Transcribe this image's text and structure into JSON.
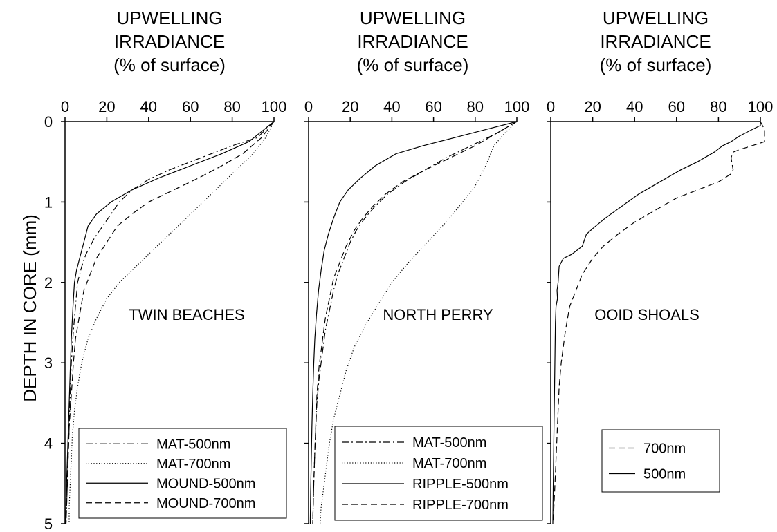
{
  "ylabel": "DEPTH IN CORE (mm)",
  "y_ticks": [
    "0",
    "1",
    "2",
    "3",
    "4",
    "5"
  ],
  "x_ticks": [
    "0",
    "20",
    "40",
    "60",
    "80",
    "100"
  ],
  "chart_data": [
    {
      "type": "line",
      "title": [
        "UPWELLING",
        "IRRADIANCE",
        "(% of surface)"
      ],
      "site_label": "TWIN BEACHES",
      "xlim": [
        0,
        100
      ],
      "ylim": [
        0,
        5
      ],
      "x_axis_position": "top",
      "y_inverted": true,
      "legend_placement": "bottom-right",
      "series": [
        {
          "name": "MAT-500nm",
          "style": "dashdot",
          "x": [
            100,
            92,
            80,
            65,
            50,
            40,
            32,
            26,
            22,
            18,
            14,
            10,
            8,
            6,
            5,
            4,
            3,
            2.5,
            2,
            1.5,
            1,
            0.5
          ],
          "y": [
            0,
            0.2,
            0.3,
            0.45,
            0.6,
            0.72,
            0.85,
            1.0,
            1.15,
            1.3,
            1.45,
            1.65,
            1.8,
            2.0,
            2.3,
            2.6,
            3.0,
            3.4,
            3.8,
            4.2,
            4.6,
            5.0
          ]
        },
        {
          "name": "MAT-700nm",
          "style": "dotted",
          "x": [
            100,
            96,
            90,
            82,
            74,
            66,
            58,
            50,
            42,
            34,
            26,
            20,
            15,
            11,
            8,
            6,
            4.5,
            3.5,
            3,
            2.5,
            2,
            2
          ],
          "y": [
            0,
            0.2,
            0.4,
            0.6,
            0.8,
            1.0,
            1.2,
            1.4,
            1.6,
            1.8,
            2.0,
            2.2,
            2.45,
            2.7,
            3.0,
            3.3,
            3.6,
            3.9,
            4.2,
            4.5,
            4.8,
            5.0
          ]
        },
        {
          "name": "MOUND-500nm",
          "style": "solid",
          "x": [
            100,
            88,
            75,
            60,
            45,
            32,
            22,
            15,
            11,
            9,
            7,
            5.5,
            4.5,
            3.8,
            3,
            2.5,
            2,
            1.5,
            1,
            0.5,
            0.3
          ],
          "y": [
            0,
            0.25,
            0.4,
            0.55,
            0.7,
            0.85,
            1.0,
            1.15,
            1.3,
            1.5,
            1.7,
            1.85,
            2.0,
            2.3,
            2.7,
            3.1,
            3.5,
            3.9,
            4.3,
            4.7,
            5.0
          ]
        },
        {
          "name": "MOUND-700nm",
          "style": "dashed",
          "x": [
            100,
            94,
            85,
            75,
            64,
            52,
            40,
            32,
            25,
            20,
            15,
            12,
            9,
            7,
            5,
            4,
            3,
            2,
            1.5,
            1,
            0.5
          ],
          "y": [
            0,
            0.2,
            0.4,
            0.55,
            0.7,
            0.85,
            1.0,
            1.15,
            1.3,
            1.5,
            1.7,
            1.9,
            2.1,
            2.4,
            2.7,
            3.0,
            3.4,
            3.8,
            4.2,
            4.6,
            5.0
          ]
        }
      ]
    },
    {
      "type": "line",
      "title": [
        "UPWELLING",
        "IRRADIANCE",
        "(% of surface)"
      ],
      "site_label": "NORTH PERRY",
      "xlim": [
        0,
        100
      ],
      "ylim": [
        0,
        5
      ],
      "x_axis_position": "top",
      "y_inverted": true,
      "legend_placement": "bottom",
      "series": [
        {
          "name": "MAT-500nm",
          "style": "dashdot",
          "x": [
            100,
            90,
            78,
            66,
            56,
            46,
            38,
            32,
            27,
            23,
            20,
            17,
            14,
            12,
            10,
            8,
            6.5,
            5,
            4,
            3.5,
            3,
            2.5,
            2
          ],
          "y": [
            0,
            0.15,
            0.3,
            0.45,
            0.6,
            0.75,
            0.9,
            1.05,
            1.2,
            1.35,
            1.5,
            1.7,
            1.9,
            2.1,
            2.35,
            2.6,
            2.9,
            3.2,
            3.5,
            3.8,
            4.1,
            4.5,
            5.0
          ]
        },
        {
          "name": "MAT-700nm",
          "style": "dotted",
          "x": [
            100,
            94,
            89,
            85,
            80,
            74,
            66,
            57,
            48,
            40,
            34,
            28,
            22,
            18,
            15,
            12,
            10,
            9,
            8,
            7,
            6,
            5.5
          ],
          "y": [
            0,
            0.15,
            0.3,
            0.55,
            0.8,
            1.0,
            1.25,
            1.5,
            1.75,
            2.0,
            2.25,
            2.5,
            2.8,
            3.1,
            3.4,
            3.7,
            4.0,
            4.2,
            4.4,
            4.6,
            4.8,
            5.0
          ]
        },
        {
          "name": "RIPPLE-500nm",
          "style": "solid",
          "x": [
            100,
            85,
            70,
            55,
            42,
            32,
            25,
            19,
            15,
            12,
            9.5,
            7.5,
            6,
            4.8,
            3.8,
            3,
            2.5,
            2,
            1.6,
            1.3,
            1,
            0.8
          ],
          "y": [
            0,
            0.1,
            0.2,
            0.3,
            0.4,
            0.55,
            0.7,
            0.85,
            1.0,
            1.2,
            1.4,
            1.6,
            1.85,
            2.1,
            2.4,
            2.7,
            3.0,
            3.4,
            3.8,
            4.2,
            4.6,
            5.0
          ]
        },
        {
          "name": "RIPPLE-700nm",
          "style": "dashed",
          "x": [
            100,
            90,
            80,
            68,
            56,
            45,
            37,
            31,
            26,
            22,
            18,
            15,
            12,
            10,
            8,
            6.5,
            5,
            4,
            3.5,
            3,
            2.5,
            2
          ],
          "y": [
            0,
            0.15,
            0.3,
            0.45,
            0.6,
            0.75,
            0.9,
            1.05,
            1.2,
            1.35,
            1.55,
            1.75,
            1.95,
            2.2,
            2.45,
            2.75,
            3.05,
            3.4,
            3.75,
            4.1,
            4.5,
            5.0
          ]
        }
      ]
    },
    {
      "type": "line",
      "title": [
        "UPWELLING",
        "IRRADIANCE",
        "(% of surface)"
      ],
      "site_label": "OOID SHOALS",
      "xlim": [
        0,
        100
      ],
      "ylim": [
        0,
        5
      ],
      "x_axis_position": "top",
      "y_inverted": true,
      "legend_placement": "bottom-right",
      "series": [
        {
          "name": "700nm",
          "style": "dashed",
          "x": [
            100,
            102,
            102,
            96,
            90,
            87,
            86,
            87,
            86,
            80,
            70,
            60,
            50,
            40,
            32,
            25,
            20,
            15,
            12,
            9,
            7,
            5,
            4,
            3.5,
            3,
            2.5,
            2,
            1.5,
            1
          ],
          "y": [
            0,
            0.1,
            0.25,
            0.3,
            0.35,
            0.38,
            0.45,
            0.6,
            0.65,
            0.75,
            0.85,
            0.95,
            1.1,
            1.25,
            1.4,
            1.55,
            1.7,
            1.9,
            2.1,
            2.3,
            2.6,
            3.0,
            3.3,
            3.6,
            3.9,
            4.2,
            4.5,
            4.8,
            5.0
          ]
        },
        {
          "name": "500nm",
          "style": "solid",
          "x": [
            100,
            100,
            96,
            90,
            86,
            82,
            78,
            74,
            70,
            62,
            52,
            42,
            34,
            26,
            20,
            17,
            15,
            10,
            6,
            4,
            3.5,
            3,
            3.2,
            2.5,
            2.2,
            2,
            1.8,
            1.6,
            1.4,
            1.2,
            1
          ],
          "y": [
            0,
            0.05,
            0.1,
            0.18,
            0.25,
            0.3,
            0.38,
            0.44,
            0.5,
            0.6,
            0.75,
            0.9,
            1.05,
            1.2,
            1.33,
            1.4,
            1.55,
            1.65,
            1.7,
            1.8,
            2.0,
            2.1,
            2.2,
            2.3,
            2.5,
            2.9,
            3.3,
            3.7,
            4.1,
            4.5,
            5.0
          ]
        }
      ]
    }
  ]
}
